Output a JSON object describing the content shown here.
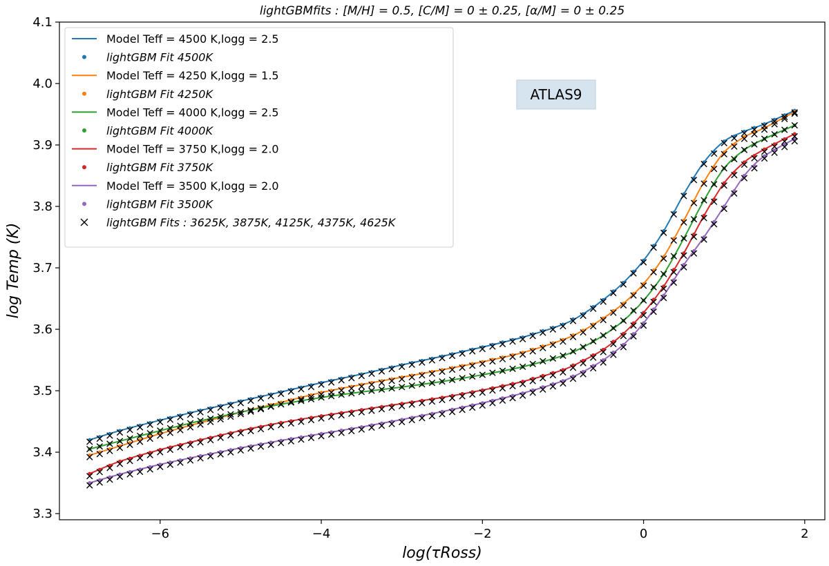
{
  "chart_data": {
    "type": "line",
    "title": "lightGBMfits : [M/H] = 0.5, [C/M] = 0 ± 0.25, [α/M] = 0 ± 0.25",
    "xlabel": "log(τRoss)",
    "ylabel": "log Temp (K)",
    "xlim": [
      -7.25,
      2.25
    ],
    "ylim": [
      3.29,
      4.1
    ],
    "xticks": [
      -6,
      -4,
      -2,
      0,
      2
    ],
    "xtick_labels": [
      "−6",
      "−4",
      "−2",
      "0",
      "2"
    ],
    "yticks": [
      3.3,
      3.4,
      3.5,
      3.6,
      3.7,
      3.8,
      3.9,
      4.0,
      4.1
    ],
    "ytick_labels": [
      "3.3",
      "3.4",
      "3.5",
      "3.6",
      "3.7",
      "3.8",
      "3.9",
      "4.0",
      "4.1"
    ],
    "grid": false,
    "legend_position": "top-left",
    "annotation": "ATLAS9",
    "x": [
      -6.875,
      -6.5,
      -6.0,
      -5.5,
      -5.0,
      -4.5,
      -4.0,
      -3.5,
      -3.0,
      -2.5,
      -2.0,
      -1.5,
      -1.0,
      -0.75,
      -0.5,
      -0.25,
      0.0,
      0.25,
      0.5,
      0.75,
      1.0,
      1.25,
      1.5,
      1.875
    ],
    "series": [
      {
        "name": "Model Teff = 4500 K,logg = 2.5",
        "fit_name": "lightGBM Fit 4500K",
        "color": "#1f77b4",
        "values": [
          3.42,
          3.435,
          3.452,
          3.468,
          3.483,
          3.498,
          3.513,
          3.527,
          3.542,
          3.556,
          3.571,
          3.587,
          3.608,
          3.625,
          3.648,
          3.676,
          3.712,
          3.76,
          3.82,
          3.872,
          3.906,
          3.922,
          3.934,
          3.956
        ]
      },
      {
        "name": "Model Teff = 4250 K,logg = 1.5",
        "fit_name": "lightGBM Fit 4250K",
        "color": "#ff7f0e",
        "values": [
          3.395,
          3.41,
          3.43,
          3.448,
          3.465,
          3.481,
          3.497,
          3.51,
          3.522,
          3.534,
          3.547,
          3.562,
          3.583,
          3.598,
          3.618,
          3.642,
          3.674,
          3.718,
          3.777,
          3.84,
          3.888,
          3.913,
          3.928,
          3.954
        ]
      },
      {
        "name": "Model Teff = 4000 K,logg = 2.5",
        "fit_name": "lightGBM Fit 4000K",
        "color": "#2ca02c",
        "values": [
          3.405,
          3.418,
          3.435,
          3.451,
          3.465,
          3.478,
          3.489,
          3.498,
          3.506,
          3.515,
          3.526,
          3.539,
          3.557,
          3.571,
          3.59,
          3.614,
          3.647,
          3.69,
          3.748,
          3.81,
          3.862,
          3.892,
          3.91,
          3.932
        ]
      },
      {
        "name": "Model Teff = 3750 K,logg = 2.0",
        "fit_name": "lightGBM Fit 3750K",
        "color": "#d62728",
        "values": [
          3.365,
          3.385,
          3.404,
          3.42,
          3.435,
          3.448,
          3.459,
          3.469,
          3.479,
          3.489,
          3.501,
          3.515,
          3.534,
          3.549,
          3.567,
          3.593,
          3.627,
          3.67,
          3.724,
          3.785,
          3.838,
          3.872,
          3.893,
          3.918
        ]
      },
      {
        "name": "Model Teff = 3500 K,logg = 2.0",
        "fit_name": "lightGBM Fit 3500K",
        "color": "#9467bd",
        "values": [
          3.35,
          3.364,
          3.38,
          3.394,
          3.407,
          3.419,
          3.43,
          3.441,
          3.453,
          3.466,
          3.48,
          3.496,
          3.516,
          3.531,
          3.55,
          3.575,
          3.61,
          3.655,
          3.705,
          3.75,
          3.8,
          3.85,
          3.882,
          3.91
        ]
      }
    ],
    "interpolated_fits_label": "lightGBM Fits : 3625K, 3875K, 4125K, 4375K, 4625K",
    "interpolated_marker_color": "#000000"
  }
}
